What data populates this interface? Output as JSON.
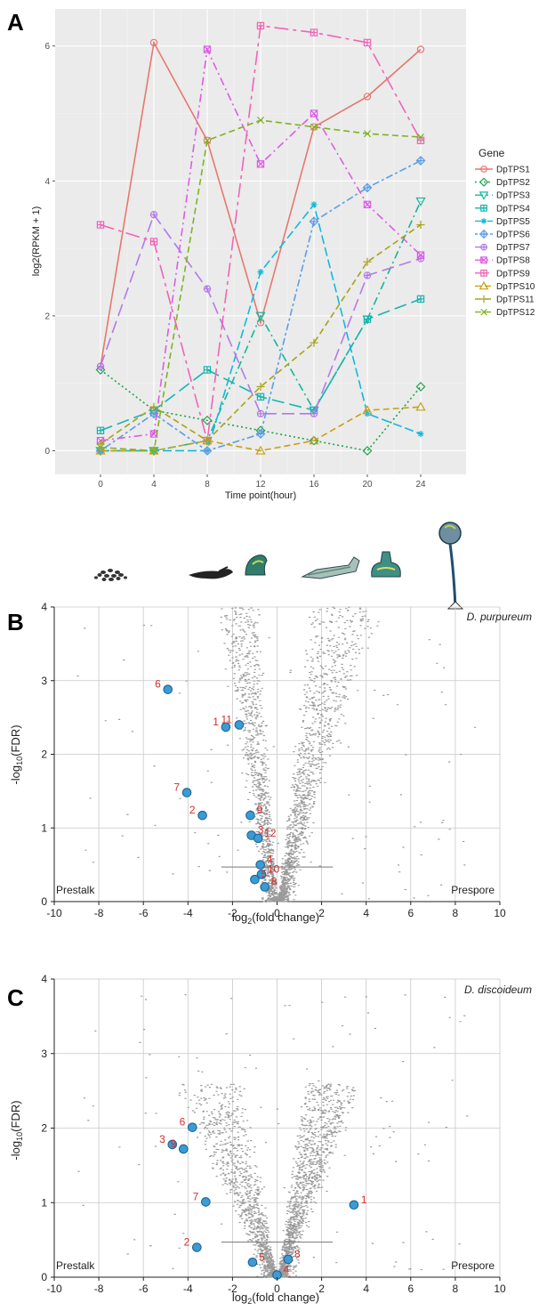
{
  "panels": {
    "A": "A",
    "B": "B",
    "C": "C"
  },
  "stages": [
    "cells",
    "aggregate",
    "slug",
    "migrating-slug",
    "culminant",
    "fruiting-body"
  ],
  "chart_data": [
    {
      "id": "A",
      "type": "line",
      "xlabel": "Time point(hour)",
      "ylabel": "log2(RPKM + 1)",
      "x": [
        0,
        4,
        8,
        12,
        16,
        20,
        24
      ],
      "xlim": [
        -3.4,
        27.4
      ],
      "ylim": [
        -0.35,
        6.55
      ],
      "xticks": [
        0,
        4,
        8,
        12,
        16,
        20,
        24
      ],
      "yticks": [
        0,
        2,
        4,
        6
      ],
      "grid": true,
      "legend_title": "Gene",
      "legend_position": "right",
      "series": [
        {
          "name": "DpTPS1",
          "color": "#e8776f",
          "dash": "",
          "marker": "circle",
          "values": [
            1.25,
            6.05,
            4.6,
            1.9,
            4.8,
            5.25,
            5.95
          ]
        },
        {
          "name": "DpTPS2",
          "color": "#1fa34b",
          "dash": "2,3",
          "marker": "diamond",
          "values": [
            1.2,
            0.6,
            0.45,
            0.3,
            0.15,
            0.0,
            0.95
          ]
        },
        {
          "name": "DpTPS3",
          "color": "#14b79a",
          "dash": "9,4,2,4",
          "marker": "tri-down",
          "values": [
            0.0,
            0.0,
            0.15,
            2.0,
            0.6,
            1.95,
            3.7
          ]
        },
        {
          "name": "DpTPS4",
          "color": "#15b5b0",
          "dash": "14,6",
          "marker": "square-cross",
          "values": [
            0.3,
            0.6,
            1.2,
            0.8,
            0.6,
            1.95,
            2.25
          ]
        },
        {
          "name": "DpTPS5",
          "color": "#10b9df",
          "dash": "10,4",
          "marker": "asterisk",
          "values": [
            0.0,
            0.0,
            0.0,
            2.65,
            3.65,
            0.55,
            0.25
          ]
        },
        {
          "name": "DpTPS6",
          "color": "#5e9ee6",
          "dash": "3,3,8,3",
          "marker": "diamond-plus",
          "values": [
            0.0,
            0.55,
            0.0,
            0.25,
            3.4,
            3.9,
            4.3
          ]
        },
        {
          "name": "DpTPS7",
          "color": "#b47ae8",
          "dash": "14,6",
          "marker": "circle-plus",
          "values": [
            1.25,
            3.5,
            2.4,
            0.55,
            0.55,
            2.6,
            2.85
          ]
        },
        {
          "name": "DpTPS8",
          "color": "#dc5de6",
          "dash": "9,4,2,4",
          "marker": "square-x",
          "values": [
            0.15,
            0.25,
            5.95,
            4.25,
            5.0,
            3.65,
            2.9
          ]
        },
        {
          "name": "DpTPS9",
          "color": "#f064b8",
          "dash": "16,5,4,5",
          "marker": "square-plus",
          "values": [
            3.35,
            3.1,
            0.15,
            6.3,
            6.2,
            6.05,
            4.6
          ]
        },
        {
          "name": "DpTPS10",
          "color": "#c9a012",
          "dash": "7,4",
          "marker": "triangle",
          "values": [
            0.0,
            0.0,
            0.15,
            0.0,
            0.15,
            0.6,
            0.65
          ]
        },
        {
          "name": "DpTPS11",
          "color": "#a8a318",
          "dash": "7,4",
          "marker": "plus",
          "values": [
            0.1,
            0.65,
            0.15,
            0.95,
            1.6,
            2.8,
            3.35
          ]
        },
        {
          "name": "DpTPS12",
          "color": "#7eb321",
          "dash": "7,4",
          "marker": "x",
          "values": [
            0.05,
            0.0,
            4.6,
            4.9,
            4.8,
            4.7,
            4.65
          ]
        }
      ]
    },
    {
      "id": "B",
      "type": "scatter",
      "species_label": "D. purpureum",
      "xlabel": "log2(fold change)",
      "ylabel": "-log10(FDR)",
      "xlim": [
        -10,
        10
      ],
      "ylim": [
        0,
        4
      ],
      "xticks": [
        -10,
        -8,
        -6,
        -4,
        -2,
        0,
        2,
        4,
        6,
        8,
        10
      ],
      "yticks": [
        0,
        1,
        2,
        3,
        4
      ],
      "grid": true,
      "threshold": 0.47,
      "left_label": "Prestalk",
      "right_label": "Prespore",
      "background": {
        "description_free": true,
        "seed": 11,
        "n": 2600,
        "left_spread": 0.55,
        "right_spread": 1.0
      },
      "points": [
        {
          "label": "6",
          "x": -4.9,
          "y": 2.88
        },
        {
          "label": "1",
          "x": -2.3,
          "y": 2.37
        },
        {
          "label": "11",
          "x": -1.7,
          "y": 2.4
        },
        {
          "label": "7",
          "x": -4.05,
          "y": 1.48
        },
        {
          "label": "2",
          "x": -3.35,
          "y": 1.17
        },
        {
          "label": "9",
          "x": -1.2,
          "y": 1.17
        },
        {
          "label": "3",
          "x": -1.15,
          "y": 0.9
        },
        {
          "label": "12",
          "x": -0.85,
          "y": 0.86
        },
        {
          "label": "4",
          "x": -0.75,
          "y": 0.5
        },
        {
          "label": "10",
          "x": -0.7,
          "y": 0.37
        },
        {
          "label": "5",
          "x": -1.0,
          "y": 0.3
        },
        {
          "label": "8",
          "x": -0.55,
          "y": 0.2
        }
      ]
    },
    {
      "id": "C",
      "type": "scatter",
      "species_label": "D. discoideum",
      "xlabel": "log2(fold change)",
      "ylabel": "-log10(FDR)",
      "xlim": [
        -10,
        10
      ],
      "ylim": [
        0,
        4
      ],
      "xticks": [
        -10,
        -8,
        -6,
        -4,
        -2,
        0,
        2,
        4,
        6,
        8,
        10
      ],
      "yticks": [
        0,
        1,
        2,
        3,
        4
      ],
      "grid": true,
      "threshold": 0.47,
      "left_label": "Prestalk",
      "right_label": "Prespore",
      "background": {
        "seed": 23,
        "n": 2600,
        "left_spread": 1.6,
        "right_spread": 1.25
      },
      "points": [
        {
          "label": "6",
          "x": -3.8,
          "y": 2.01
        },
        {
          "label": "3",
          "x": -4.7,
          "y": 1.78
        },
        {
          "label": "9",
          "x": -4.2,
          "y": 1.72
        },
        {
          "label": "7",
          "x": -3.2,
          "y": 1.01
        },
        {
          "label": "1",
          "x": 3.45,
          "y": 0.97
        },
        {
          "label": "2",
          "x": -3.6,
          "y": 0.4
        },
        {
          "label": "5",
          "x": -1.1,
          "y": 0.2
        },
        {
          "label": "8",
          "x": 0.5,
          "y": 0.24
        },
        {
          "label": "4",
          "x": 0.0,
          "y": 0.03
        }
      ]
    }
  ]
}
